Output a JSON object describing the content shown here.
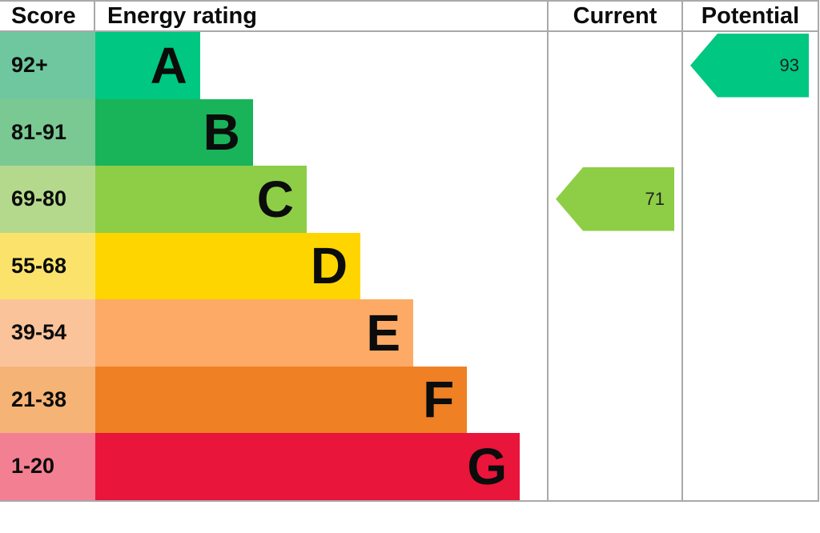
{
  "header": {
    "columns": [
      "Score",
      "Energy rating",
      "Current",
      "Potential"
    ]
  },
  "chart_data": {
    "type": "bar",
    "title": "EPC energy efficiency rating chart",
    "columns": [
      "Score",
      "Energy rating",
      "Current",
      "Potential"
    ],
    "bands": [
      {
        "letter": "A",
        "score": "92+",
        "bar_color": "#00c781",
        "score_color": "#6fc7a0",
        "bar_width_pct": 23.2
      },
      {
        "letter": "B",
        "score": "81-91",
        "bar_color": "#19b459",
        "score_color": "#7ac892",
        "bar_width_pct": 34.9
      },
      {
        "letter": "C",
        "score": "69-80",
        "bar_color": "#8dce46",
        "score_color": "#b5d98c",
        "bar_width_pct": 46.8
      },
      {
        "letter": "D",
        "score": "55-68",
        "bar_color": "#ffd500",
        "score_color": "#fbe36b",
        "bar_width_pct": 58.7
      },
      {
        "letter": "E",
        "score": "39-54",
        "bar_color": "#fcaa65",
        "score_color": "#fbc39a",
        "bar_width_pct": 70.4
      },
      {
        "letter": "F",
        "score": "21-38",
        "bar_color": "#ef8023",
        "score_color": "#f6b376",
        "bar_width_pct": 82.3
      },
      {
        "letter": "G",
        "score": "1-20",
        "bar_color": "#e9153b",
        "score_color": "#f37f93",
        "bar_width_pct": 94.0
      }
    ],
    "current": {
      "value": "71",
      "band": "C",
      "color": "#8dce46"
    },
    "potential": {
      "value": "93",
      "band": "A",
      "color": "#00c781"
    },
    "layout": {
      "border_color": "#a9a9a9",
      "legend": "off",
      "grid": "off"
    }
  }
}
